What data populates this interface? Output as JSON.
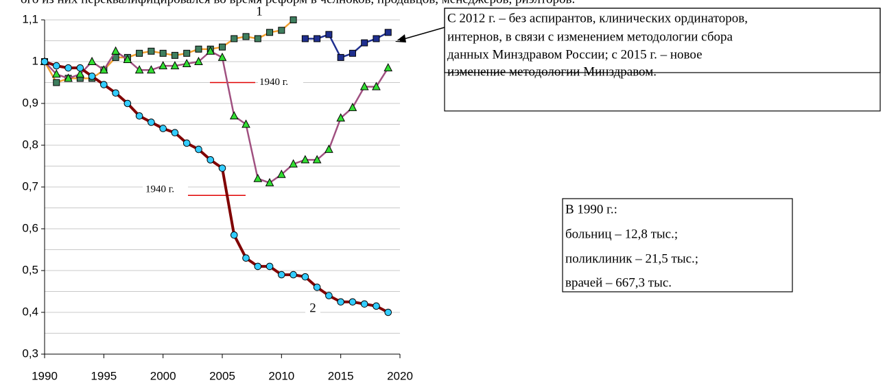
{
  "chart_data": {
    "type": "line",
    "header": "ого из них переквалифицировался во время реформ в челноков, продавцов, менеджеров, риэлторов.",
    "xlim": [
      1990,
      2020
    ],
    "xticks": [
      1990,
      1995,
      2000,
      2005,
      2010,
      2015,
      2020
    ],
    "ylim": [
      0.3,
      1.1
    ],
    "yticks": [
      {
        "value": 0.3,
        "label": "0,3"
      },
      {
        "value": 0.4,
        "label": "0,4"
      },
      {
        "value": 0.5,
        "label": "0,5"
      },
      {
        "value": 0.6,
        "label": "0,6"
      },
      {
        "value": 0.7,
        "label": "0,7"
      },
      {
        "value": 0.8,
        "label": "0,8"
      },
      {
        "value": 0.9,
        "label": "0,9"
      },
      {
        "value": 1.0,
        "label": "1"
      },
      {
        "value": 1.1,
        "label": "1,1"
      }
    ],
    "yminor": [
      0.35,
      0.45,
      0.55,
      0.65,
      0.75,
      0.85,
      0.95,
      1.05
    ],
    "grid": true,
    "series": [
      {
        "marker": "square",
        "color": "#f0a030",
        "marker_color": "#3f7f5f",
        "x": [
          1990,
          1991,
          1992,
          1993,
          1994,
          1995,
          1996,
          1997,
          1998,
          1999,
          2000,
          2001,
          2002,
          2003,
          2004,
          2005,
          2006,
          2007,
          2008,
          2009,
          2010,
          2011
        ],
        "values": [
          1.0,
          0.95,
          0.96,
          0.96,
          0.96,
          0.98,
          1.01,
          1.01,
          1.02,
          1.025,
          1.02,
          1.015,
          1.02,
          1.03,
          1.03,
          1.035,
          1.055,
          1.06,
          1.055,
          1.07,
          1.075,
          1.1
        ]
      },
      {
        "marker": "square",
        "color": "#1f2f8f",
        "marker_color": "#1f2f8f",
        "x": [
          2012,
          2013,
          2014,
          2015,
          2016,
          2017,
          2018,
          2019
        ],
        "values": [
          1.055,
          1.055,
          1.065,
          1.01,
          1.02,
          1.045,
          1.055,
          1.07
        ]
      },
      {
        "marker": "triangle",
        "color": "#a05080",
        "marker_color": "#33dd33",
        "x": [
          1990,
          1991,
          1992,
          1993,
          1994,
          1995,
          1996,
          1997,
          1998,
          1999,
          2000,
          2001,
          2002,
          2003,
          2004,
          2005,
          2006,
          2007,
          2008,
          2009,
          2010,
          2011,
          2012,
          2013,
          2014,
          2015,
          2016,
          2017,
          2018,
          2019
        ],
        "values": [
          1.0,
          0.97,
          0.96,
          0.97,
          1.0,
          0.98,
          1.025,
          1.005,
          0.98,
          0.98,
          0.99,
          0.99,
          0.995,
          1.0,
          1.025,
          1.01,
          0.87,
          0.85,
          0.72,
          0.71,
          0.73,
          0.755,
          0.765,
          0.765,
          0.79,
          0.865,
          0.89,
          0.94,
          0.94,
          0.985
        ]
      },
      {
        "marker": "circle",
        "color": "#800000",
        "marker_color": "#33ccff",
        "x": [
          1990,
          1991,
          1992,
          1993,
          1994,
          1995,
          1996,
          1997,
          1998,
          1999,
          2000,
          2001,
          2002,
          2003,
          2004,
          2005,
          2006,
          2007,
          2008,
          2009,
          2010,
          2011,
          2012,
          2013,
          2014,
          2015,
          2016,
          2017,
          2018,
          2019
        ],
        "values": [
          1.0,
          0.99,
          0.985,
          0.985,
          0.965,
          0.945,
          0.925,
          0.9,
          0.87,
          0.855,
          0.84,
          0.83,
          0.805,
          0.79,
          0.765,
          0.745,
          0.585,
          0.53,
          0.51,
          0.51,
          0.49,
          0.49,
          0.485,
          0.46,
          0.44,
          0.425,
          0.425,
          0.42,
          0.415,
          0.4
        ]
      }
    ],
    "annotations": [
      {
        "text": "1"
      },
      {
        "text": "2"
      },
      {
        "text": "1940 г.",
        "y": 0.95
      },
      {
        "text": "1940 г.",
        "y": 0.68
      }
    ],
    "note_box": [
      "С 2012 г. – без аспирантов, клинических ординаторов,",
      "интернов, в связи с изменением методологии сбора",
      "данных Минздравом России; с 2015 г. – новое",
      "изменение методологии  Минздравом."
    ],
    "info_box": [
      "В 1990 г.:",
      "больниц – 12,8 тыс.;",
      "поликлиник – 21,5 тыс.;",
      "врачей – 667,3 тыс."
    ]
  }
}
